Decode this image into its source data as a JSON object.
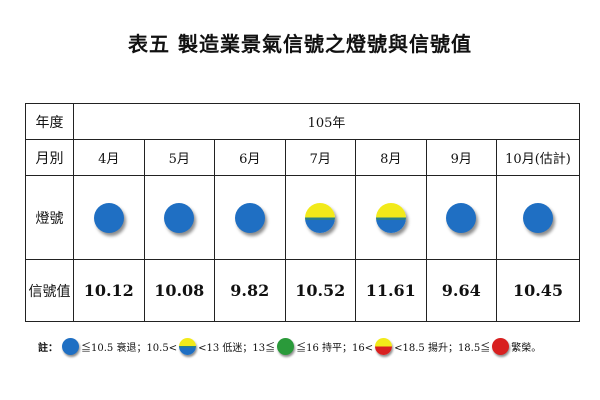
{
  "title": "表五 製造業景氣信號之燈號與信號值",
  "table": {
    "header_year_label": "年度",
    "year": "105年",
    "month_label": "月別",
    "months": [
      "4月",
      "5月",
      "6月",
      "7月",
      "8月",
      "9月",
      "10月(估計)"
    ],
    "light_label": "燈號",
    "lights": [
      "blue",
      "blue",
      "blue",
      "yellow-blue",
      "yellow-blue",
      "blue",
      "blue"
    ],
    "value_label": "信號值",
    "values": [
      "10.12",
      "10.08",
      "9.82",
      "10.52",
      "11.61",
      "9.64",
      "10.45"
    ]
  },
  "legend": {
    "prefix": "註：",
    "items": [
      {
        "light": "blue",
        "text": "≦10.5 衰退；10.5<"
      },
      {
        "light": "yellow-blue",
        "text": "<13 低迷；13≦"
      },
      {
        "light": "green",
        "text": "≦16 持平；16<"
      },
      {
        "light": "yellow-red",
        "text": "<18.5 揚升；18.5≦"
      },
      {
        "light": "red",
        "text": "繁榮。"
      }
    ]
  },
  "colors": {
    "blue": "#1f6fc3",
    "yellow": "#f2ea1a",
    "green": "#2a9a3a",
    "red": "#d82020"
  }
}
